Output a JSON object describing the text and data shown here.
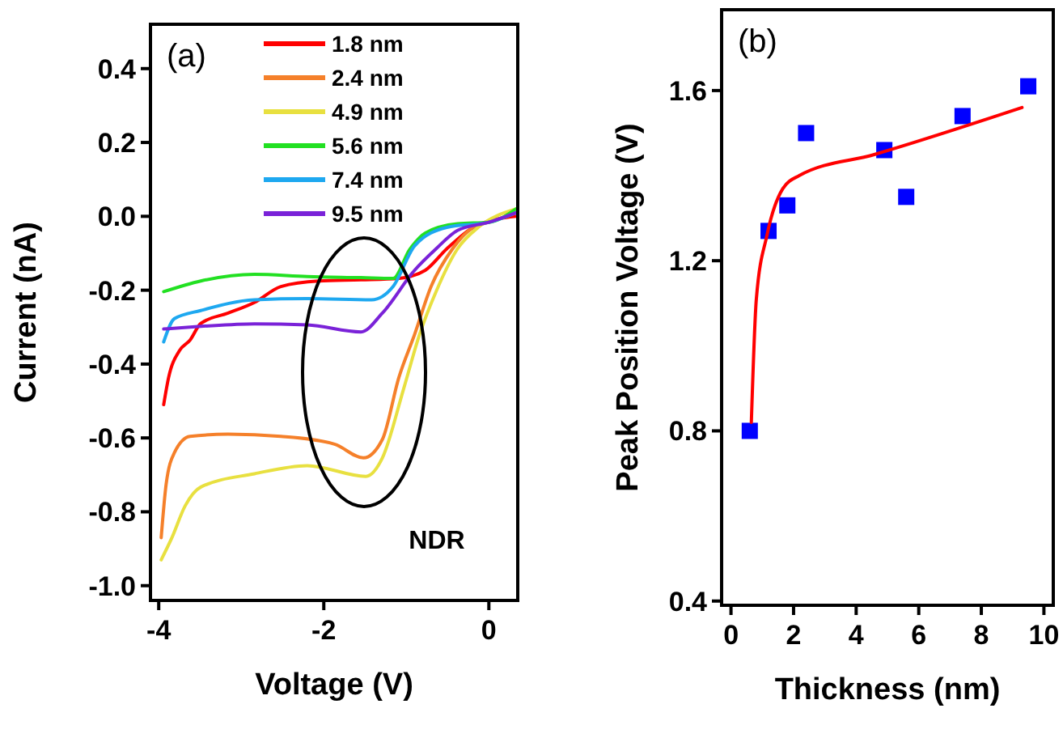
{
  "chart_data": [
    {
      "type": "line",
      "title": "(a)",
      "xlabel": "Voltage (V)",
      "ylabel": "Current (nA)",
      "xlim": [
        -4.1,
        0.35
      ],
      "xticks": [
        -4,
        -2,
        0
      ],
      "ylim": [
        -1.04,
        0.52
      ],
      "yticks": [
        0.4,
        0.2,
        {
          "value": 0,
          "label": "0.0"
        },
        -0.2,
        -0.4,
        -0.6,
        -0.8,
        {
          "value": -1,
          "label": "-1.0"
        }
      ],
      "grid": false,
      "legend": "top",
      "annotations": [
        "NDR"
      ],
      "series": [
        {
          "name": "1.8 nm",
          "color": "#ff0000",
          "x": [
            -3.94,
            -3.88,
            -3.75,
            -3.62,
            -3.49,
            -3.16,
            -2.84,
            -2.52,
            -2.06,
            -1.55,
            -1.09,
            -0.77,
            -0.51,
            -0.13,
            0.33
          ],
          "values": [
            -0.51,
            -0.436,
            -0.364,
            -0.335,
            -0.29,
            -0.262,
            -0.233,
            -0.19,
            -0.175,
            -0.172,
            -0.168,
            -0.146,
            -0.088,
            -0.023,
            0.0
          ]
        },
        {
          "name": "2.4 nm",
          "color": "#f5802a",
          "x": [
            -3.97,
            -3.91,
            -3.81,
            -3.62,
            -3.16,
            -2.52,
            -1.87,
            -1.52,
            -1.29,
            -1.09,
            -0.9,
            -0.7,
            -0.44,
            -0.19,
            0,
            0.33
          ],
          "values": [
            -0.87,
            -0.725,
            -0.64,
            -0.596,
            -0.59,
            -0.596,
            -0.617,
            -0.654,
            -0.604,
            -0.436,
            -0.32,
            -0.19,
            -0.088,
            -0.03,
            -0.016,
            0.01
          ]
        },
        {
          "name": "4.9 nm",
          "color": "#e8e040",
          "x": [
            -3.97,
            -3.84,
            -3.68,
            -3.49,
            -2.84,
            -2.2,
            -1.49,
            -1.29,
            -1.03,
            -0.84,
            -0.64,
            -0.38,
            -0.13,
            0.33
          ],
          "values": [
            -0.93,
            -0.87,
            -0.784,
            -0.733,
            -0.697,
            -0.675,
            -0.704,
            -0.654,
            -0.465,
            -0.32,
            -0.204,
            -0.088,
            -0.03,
            0.02
          ]
        },
        {
          "name": "5.6 nm",
          "color": "#22e022",
          "x": [
            -3.94,
            -3.49,
            -2.84,
            -2.2,
            -1.55,
            -1.16,
            -0.96,
            -0.77,
            -0.38,
            0,
            0.33
          ],
          "values": [
            -0.204,
            -0.175,
            -0.157,
            -0.163,
            -0.166,
            -0.168,
            -0.09,
            -0.045,
            -0.02,
            -0.016,
            0.02
          ]
        },
        {
          "name": "7.4 nm",
          "color": "#1ea8f0",
          "x": [
            -3.94,
            -3.81,
            -3.49,
            -2.84,
            -2.2,
            -1.42,
            -1.16,
            -0.9,
            -0.51,
            0,
            0.33
          ],
          "values": [
            -0.34,
            -0.277,
            -0.255,
            -0.226,
            -0.223,
            -0.226,
            -0.19,
            -0.08,
            -0.03,
            -0.016,
            0.01
          ]
        },
        {
          "name": "9.5 nm",
          "color": "#7a22d8",
          "x": [
            -3.94,
            -3.49,
            -2.84,
            -2.2,
            -1.55,
            -1.29,
            -0.9,
            -0.64,
            -0.38,
            0,
            0.33
          ],
          "values": [
            -0.305,
            -0.298,
            -0.291,
            -0.294,
            -0.313,
            -0.262,
            -0.146,
            -0.088,
            -0.038,
            -0.016,
            0.01
          ]
        }
      ]
    },
    {
      "type": "scatter",
      "title": "(b)",
      "xlabel": "Thickness (nm)",
      "ylabel": "Peak Position Voltage (V)",
      "xlim": [
        -0.3,
        10.3
      ],
      "xticks": [
        0,
        2,
        4,
        6,
        8,
        10
      ],
      "ylim": [
        0.39,
        1.79
      ],
      "yticks": [
        0.4,
        0.8,
        1.2,
        1.6
      ],
      "grid": false,
      "series": [
        {
          "color": "#0000ff",
          "marker": "square",
          "x": [
            0.6,
            1.2,
            1.8,
            2.4,
            4.9,
            5.6,
            7.4,
            9.5
          ],
          "values": [
            0.8,
            1.27,
            1.33,
            1.5,
            1.46,
            1.35,
            1.54,
            1.61
          ]
        },
        {
          "type": "line",
          "color": "#ff0000",
          "x": [
            0.65,
            0.81,
            1.15,
            1.66,
            2.18,
            4.6,
            9.3
          ],
          "values": [
            0.82,
            1.11,
            1.26,
            1.37,
            1.4,
            1.45,
            1.56
          ]
        }
      ]
    }
  ]
}
